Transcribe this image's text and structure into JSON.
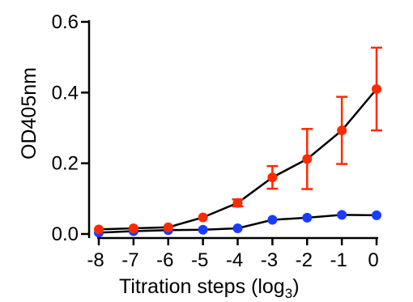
{
  "chart_data": {
    "type": "line",
    "title": "",
    "xlabel": "Titration steps (log",
    "xlabel_sub": "3",
    "xlabel_close": ")",
    "ylabel": "OD405nm",
    "xlim": [
      -8,
      0
    ],
    "ylim": [
      0,
      0.6
    ],
    "x_ticks": [
      "-8",
      "-7",
      "-6",
      "-5",
      "-4",
      "-3",
      "-2",
      "-1",
      "0"
    ],
    "y_ticks": [
      "0.0",
      "0.2",
      "0.4",
      "0.6"
    ],
    "x": [
      -8,
      -7,
      -6,
      -5,
      -4,
      -3,
      -2,
      -1,
      0
    ],
    "series": [
      {
        "color": "#ff2a00",
        "values": [
          0.013,
          0.016,
          0.019,
          0.047,
          0.088,
          0.16,
          0.212,
          0.293,
          0.41
        ],
        "error": [
          0.003,
          0.003,
          0.003,
          0.004,
          0.01,
          0.032,
          0.085,
          0.095,
          0.117
        ]
      },
      {
        "color": "#1a3cff",
        "values": [
          0.004,
          0.008,
          0.011,
          0.012,
          0.016,
          0.04,
          0.046,
          0.054,
          0.053
        ],
        "error": [
          0,
          0,
          0,
          0,
          0,
          0,
          0,
          0,
          0
        ]
      }
    ],
    "grid": false,
    "legend": "none"
  }
}
